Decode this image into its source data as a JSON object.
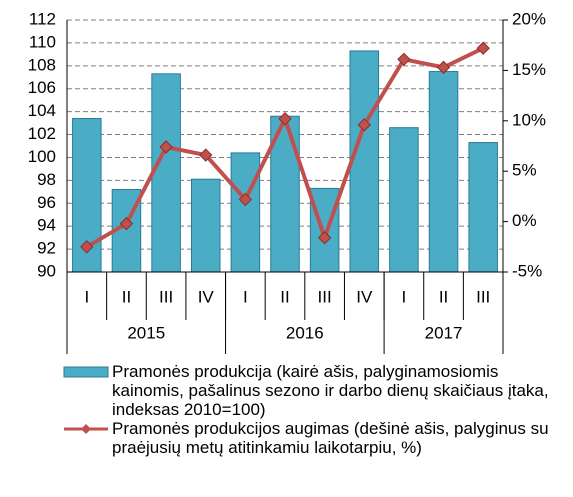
{
  "chart_data": {
    "type": "bar_line",
    "categories": [
      "I",
      "II",
      "III",
      "IV",
      "I",
      "II",
      "III",
      "IV",
      "I",
      "II",
      "III"
    ],
    "category_groups": [
      {
        "label": "2015",
        "count": 4
      },
      {
        "label": "2016",
        "count": 4
      },
      {
        "label": "2017",
        "count": 3
      }
    ],
    "series": [
      {
        "name": "Pramonės produkcija (kairė ašis, palyginamosiomis kainomis, pašalinus sezono ir darbo dienų skaičiaus įtaka, indeksas 2010=100)",
        "type": "bar",
        "color": "#4bacc6",
        "values": [
          103.4,
          97.2,
          107.3,
          98.1,
          100.4,
          103.6,
          97.3,
          109.3,
          102.6,
          107.5,
          101.3
        ]
      },
      {
        "name": "Pramonės produkcijos augimas (dešinė ašis, palyginus su praėjusių metų atitinkamiu laikotarpiu, %)",
        "type": "line",
        "axis": "y2",
        "color": "#c0504d",
        "values": [
          -2.5,
          -0.2,
          7.4,
          6.6,
          2.2,
          10.2,
          -1.6,
          9.6,
          16.1,
          15.3,
          17.2
        ]
      }
    ],
    "ylim": [
      90,
      112
    ],
    "yticks": [
      90,
      92,
      94,
      96,
      98,
      100,
      102,
      104,
      106,
      108,
      110,
      112
    ],
    "y2lim": [
      -5,
      20
    ],
    "y2ticks": [
      {
        "value": -5,
        "label": "-5%"
      },
      {
        "value": 0,
        "label": "0%"
      },
      {
        "value": 5,
        "label": "5%"
      },
      {
        "value": 10,
        "label": "10%"
      },
      {
        "value": 15,
        "label": "15%"
      },
      {
        "value": 20,
        "label": "20%"
      }
    ],
    "grid": true
  }
}
